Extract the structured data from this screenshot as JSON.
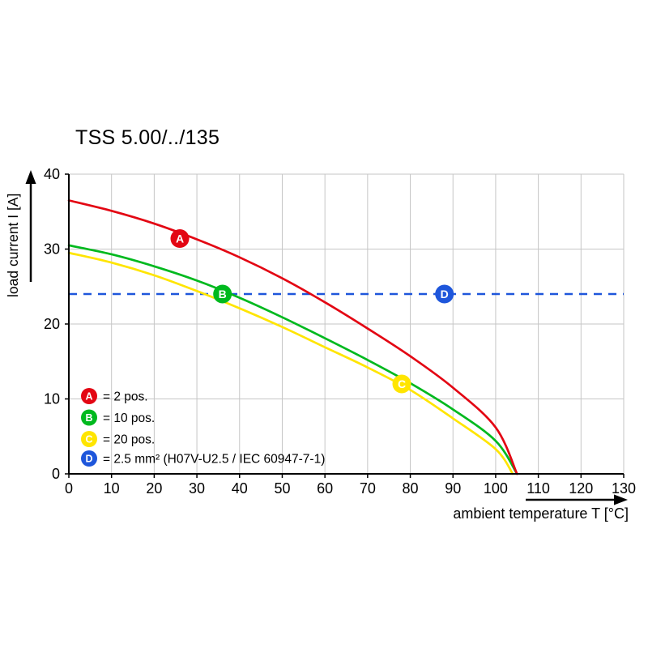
{
  "chart_data": {
    "type": "line",
    "title": "TSS 5.00/../135",
    "xlabel": "ambient temperature T [°C]",
    "ylabel": "load current I [A]",
    "xlim": [
      0,
      130
    ],
    "ylim": [
      0,
      40
    ],
    "xticks": [
      0,
      10,
      20,
      30,
      40,
      50,
      60,
      70,
      80,
      90,
      100,
      110,
      120,
      130
    ],
    "yticks": [
      0,
      10,
      20,
      30,
      40
    ],
    "grid": true,
    "grid_color": "#c6c6c6",
    "axis_color": "#000000",
    "legend_position": "bottom-left-inside",
    "series": [
      {
        "name": "A",
        "label": "= 2 pos.",
        "color": "#e30613",
        "kind": "curve",
        "points": [
          [
            0,
            36.5
          ],
          [
            10,
            35.1
          ],
          [
            20,
            33.4
          ],
          [
            30,
            31.3
          ],
          [
            40,
            28.9
          ],
          [
            50,
            26.1
          ],
          [
            60,
            22.9
          ],
          [
            70,
            19.4
          ],
          [
            80,
            15.7
          ],
          [
            90,
            11.5
          ],
          [
            100,
            6.2
          ],
          [
            105,
            0
          ]
        ],
        "marker_at": [
          26,
          31.4
        ]
      },
      {
        "name": "B",
        "label": "= 10 pos.",
        "color": "#00b91e",
        "kind": "curve",
        "points": [
          [
            0,
            30.5
          ],
          [
            10,
            29.3
          ],
          [
            20,
            27.7
          ],
          [
            30,
            25.8
          ],
          [
            40,
            23.5
          ],
          [
            50,
            20.9
          ],
          [
            60,
            18.1
          ],
          [
            70,
            15.2
          ],
          [
            80,
            12.1
          ],
          [
            90,
            8.6
          ],
          [
            100,
            4.4
          ],
          [
            105,
            0
          ]
        ],
        "marker_at": [
          36,
          24
        ]
      },
      {
        "name": "C",
        "label": "= 20 pos.",
        "color": "#ffe500",
        "kind": "curve",
        "points": [
          [
            0,
            29.5
          ],
          [
            10,
            28.2
          ],
          [
            20,
            26.5
          ],
          [
            30,
            24.4
          ],
          [
            40,
            22.1
          ],
          [
            50,
            19.6
          ],
          [
            60,
            16.9
          ],
          [
            70,
            14.2
          ],
          [
            80,
            11.2
          ],
          [
            90,
            7.4
          ],
          [
            100,
            3.3
          ],
          [
            104,
            0
          ]
        ],
        "marker_at": [
          78,
          12
        ]
      },
      {
        "name": "D",
        "label": "= 2.5 mm² (H07V-U2.5 / IEC 60947-7-1)",
        "color": "#1e56db",
        "kind": "hline",
        "value": 24,
        "dashed": true,
        "marker_at": [
          88,
          24
        ]
      }
    ]
  }
}
